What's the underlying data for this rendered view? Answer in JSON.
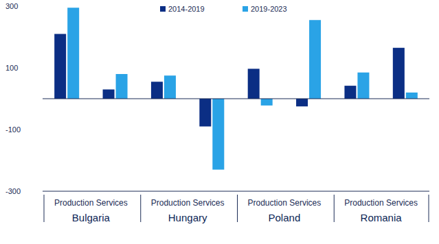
{
  "chart_data": {
    "type": "bar",
    "categories": [
      null,
      null,
      null,
      null,
      null,
      null,
      null,
      null
    ],
    "groups": [
      {
        "name": "Production Services",
        "label": "Bulgaria"
      },
      {
        "name": "Production Services",
        "label": "Hungary"
      },
      {
        "name": "Production Services",
        "label": "Poland"
      },
      {
        "name": "Production Services",
        "label": "Romania"
      }
    ],
    "series": [
      {
        "name": "2014-2019",
        "color": "#0b2e84",
        "values": [
          210,
          30,
          55,
          -90,
          97,
          -25,
          42,
          165
        ]
      },
      {
        "name": "2019-2023",
        "color": "#2aa3e6",
        "values": [
          295,
          80,
          75,
          -230,
          -22,
          255,
          85,
          20
        ]
      }
    ],
    "ylim": [
      -300,
      300
    ],
    "yticks": [
      -300,
      -100,
      100,
      300
    ],
    "grid": false,
    "legend": "top"
  }
}
